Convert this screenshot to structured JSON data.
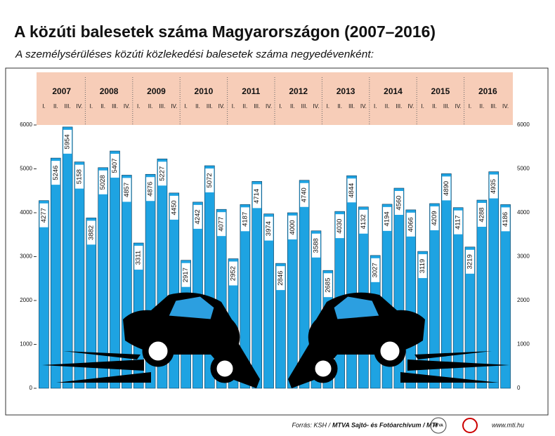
{
  "chart_data": {
    "type": "bar",
    "title": "A közúti balesetek száma Magyarországon (2007–2016)",
    "subtitle": "A személysérüléses közúti közlekedési balesetek száma negyedévenként:",
    "groups": [
      "2007",
      "2008",
      "2009",
      "2010",
      "2011",
      "2012",
      "2013",
      "2014",
      "2015",
      "2016"
    ],
    "categories": [
      "I.",
      "II.",
      "III.",
      "IV.",
      "I.",
      "II.",
      "III.",
      "IV.",
      "I.",
      "II.",
      "III.",
      "IV.",
      "I.",
      "II.",
      "III.",
      "IV.",
      "I.",
      "II.",
      "III.",
      "IV.",
      "I.",
      "II.",
      "III.",
      "IV.",
      "I.",
      "II.",
      "III.",
      "IV.",
      "I.",
      "II.",
      "III.",
      "IV.",
      "I.",
      "II.",
      "III.",
      "IV.",
      "I.",
      "II.",
      "III.",
      "IV."
    ],
    "values": [
      4277,
      5246,
      5954,
      5158,
      3882,
      5028,
      5407,
      4857,
      3311,
      4876,
      5227,
      4450,
      2917,
      4242,
      5072,
      4077,
      2952,
      4187,
      4714,
      3974,
      2846,
      4000,
      4740,
      3588,
      2685,
      4030,
      4844,
      4132,
      3027,
      4194,
      4560,
      4066,
      3119,
      4209,
      4890,
      4117,
      3219,
      4288,
      4935,
      4186
    ],
    "color": "#1ea3e2",
    "ylim": [
      0,
      6000
    ],
    "yticks": [
      0,
      1000,
      2000,
      3000,
      4000,
      5000,
      6000
    ],
    "grid": false,
    "source": "Forrás: KSH /",
    "source_org": "MTVA Sajtó- és Fotóarchívum / MTI",
    "logo": "MTVA",
    "url": "www.mti.hu"
  }
}
